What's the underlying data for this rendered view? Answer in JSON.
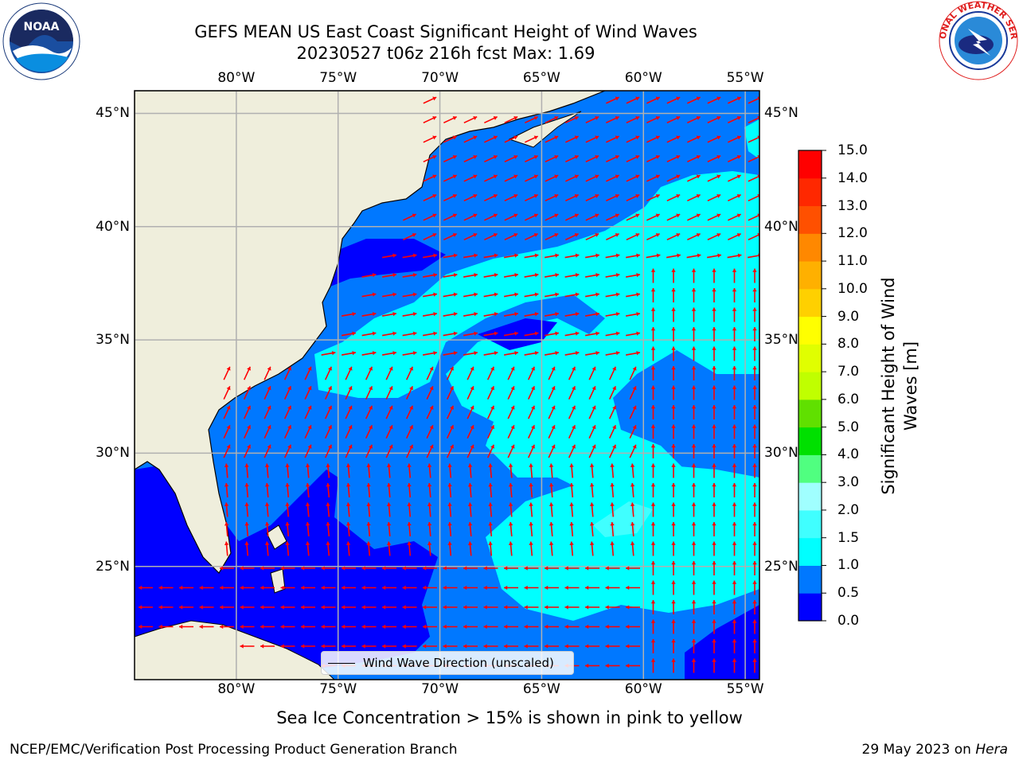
{
  "title_line1": "GEFS MEAN US East Coast Significant Height of Wind Waves",
  "title_line2": "20230527 t06z 216h fcst   Max: 1.69",
  "lon_labels": [
    "80°W",
    "75°W",
    "70°W",
    "65°W",
    "60°W",
    "55°W"
  ],
  "lat_labels": [
    "45°N",
    "40°N",
    "35°N",
    "30°N",
    "25°N"
  ],
  "lon_values": [
    -80,
    -75,
    -70,
    -65,
    -60,
    -55
  ],
  "lat_values": [
    45,
    40,
    35,
    30,
    25
  ],
  "map_extent": {
    "lon_min": -85,
    "lon_max": -54.3,
    "lat_min": 20,
    "lat_max": 46
  },
  "legend_label": "Wind Wave Direction (unscaled)",
  "colorbar": {
    "label": "Significant Height of Wind Waves [m]",
    "label_line1": "Significant Height of Wind",
    "label_line2": "Waves [m]",
    "ticks": [
      "0.0",
      "0.5",
      "1.0",
      "1.5",
      "2.0",
      "3.0",
      "4.0",
      "5.0",
      "6.0",
      "7.0",
      "8.0",
      "9.0",
      "10.0",
      "11.0",
      "12.0",
      "13.0",
      "14.0",
      "15.0"
    ],
    "colors": [
      "#0000ff",
      "#0078ff",
      "#00ffff",
      "#40ffff",
      "#a0ffff",
      "#50ff80",
      "#00e000",
      "#60e000",
      "#c0ff00",
      "#e0ff00",
      "#ffff00",
      "#ffd000",
      "#ffb000",
      "#ff8800",
      "#ff5000",
      "#ff2800",
      "#ff0000"
    ]
  },
  "colors": {
    "land": "#efeedc",
    "ocean_low": "#0000ff",
    "ocean_mid": "#0078ff",
    "ocean_high": "#00ffff",
    "arrow": "#ff0000",
    "grid": "#b0b0b0"
  },
  "note": "Sea Ice Concentration > 15% is shown in pink to yellow",
  "credit": "NCEP/EMC/Verification Post Processing Product Generation Branch",
  "date_text": "29 May 2023 on",
  "date_machine": "Hera",
  "logos": {
    "left": "noaa-logo",
    "right": "nws-logo",
    "left_text": "NOAA",
    "right_text": "NATIONAL WEATHER SERVICE"
  }
}
